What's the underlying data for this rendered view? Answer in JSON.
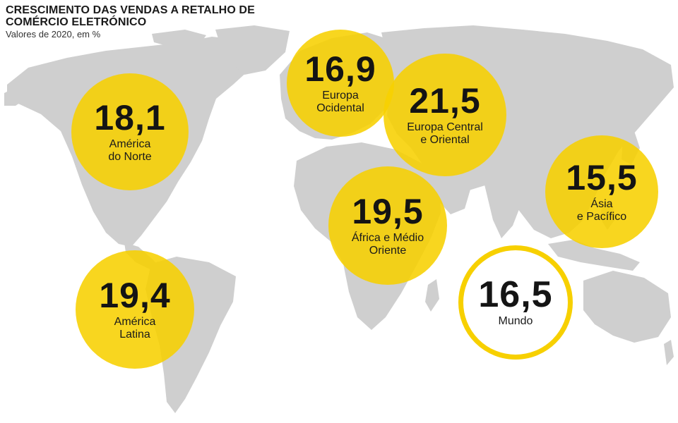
{
  "header": {
    "title": "CRESCIMENTO DAS VENDAS A RETALHO DE COMÉRCIO ELETRÓNICO",
    "subtitle": "Valores de 2020, em %"
  },
  "colors": {
    "bubble_fill": "#f7d000",
    "bubble_opacity": 0.88,
    "world_fill": "#ffffff",
    "world_border": "#f7d000",
    "land": "#cfcfcf",
    "background": "#ffffff"
  },
  "chart_data": {
    "type": "map-bubbles",
    "regions": [
      {
        "id": "america-do-norte",
        "value": "18,1",
        "label": "América\ndo Norte"
      },
      {
        "id": "america-latina",
        "value": "19,4",
        "label": "América\nLatina"
      },
      {
        "id": "europa-ocidental",
        "value": "16,9",
        "label": "Europa\nOcidental"
      },
      {
        "id": "europa-central-oriental",
        "value": "21,5",
        "label": "Europa Central\ne Oriental"
      },
      {
        "id": "africa-medio-oriente",
        "value": "19,5",
        "label": "África e Médio\nOriente"
      },
      {
        "id": "asia-pacifico",
        "value": "15,5",
        "label": "Ásia\ne Pacífico"
      },
      {
        "id": "mundo",
        "value": "16,5",
        "label": "Mundo"
      }
    ]
  }
}
